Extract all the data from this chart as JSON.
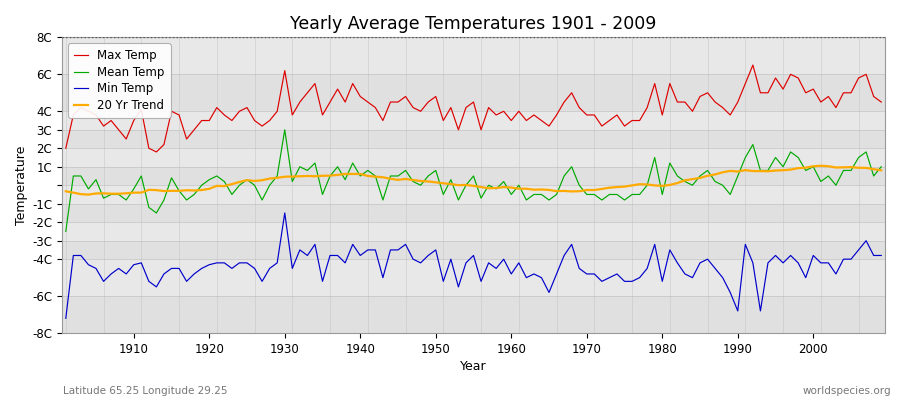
{
  "title": "Yearly Average Temperatures 1901 - 2009",
  "xlabel": "Year",
  "ylabel": "Temperature",
  "subtitle_lat": "Latitude 65.25 Longitude 29.25",
  "subtitle_right": "worldspecies.org",
  "ylim": [
    -8,
    8
  ],
  "start_year": 1901,
  "end_year": 2009,
  "colors": {
    "max": "#dd0000",
    "mean": "#00aa00",
    "min": "#0000cc",
    "trend": "#ffaa00",
    "bg_light": "#ebebeb",
    "bg_dark": "#dcdcdc",
    "grid_v": "#c8c8c8",
    "grid_h": "#c8c8c8"
  },
  "legend_labels": [
    "Max Temp",
    "Mean Temp",
    "Min Temp",
    "20 Yr Trend"
  ],
  "yticks": [
    -8,
    -6,
    -4,
    -3,
    -2,
    -1,
    0,
    1,
    2,
    3,
    4,
    6,
    8
  ],
  "ytick_labels": [
    "-8C",
    "-6C",
    "-4C",
    "-3C",
    "-2C",
    "-1C",
    "",
    "1C",
    "2C",
    "3C",
    "4C",
    "6C",
    "8C"
  ],
  "max_temps": [
    2.0,
    3.8,
    4.2,
    4.0,
    3.8,
    3.2,
    3.5,
    3.0,
    2.5,
    3.5,
    4.1,
    2.0,
    1.8,
    2.2,
    4.0,
    3.8,
    2.5,
    3.0,
    3.5,
    3.5,
    4.2,
    3.8,
    3.5,
    4.0,
    4.2,
    3.5,
    3.2,
    3.5,
    4.0,
    6.2,
    3.8,
    4.5,
    5.0,
    5.5,
    3.8,
    4.5,
    5.2,
    4.5,
    5.5,
    4.8,
    4.5,
    4.2,
    3.5,
    4.5,
    4.5,
    4.8,
    4.2,
    4.0,
    4.5,
    4.8,
    3.5,
    4.2,
    3.0,
    4.2,
    4.5,
    3.0,
    4.2,
    3.8,
    4.0,
    3.5,
    4.0,
    3.5,
    3.8,
    3.5,
    3.2,
    3.8,
    4.5,
    5.0,
    4.2,
    3.8,
    3.8,
    3.2,
    3.5,
    3.8,
    3.2,
    3.5,
    3.5,
    4.2,
    5.5,
    3.8,
    5.5,
    4.5,
    4.5,
    4.0,
    4.8,
    5.0,
    4.5,
    4.2,
    3.8,
    4.5,
    5.5,
    6.5,
    5.0,
    5.0,
    5.8,
    5.2,
    6.0,
    5.8,
    5.0,
    5.2,
    4.5,
    4.8,
    4.2,
    5.0,
    5.0,
    5.8,
    6.0,
    4.8,
    4.5
  ],
  "mean_temps": [
    -2.5,
    0.5,
    0.5,
    -0.2,
    0.3,
    -0.7,
    -0.5,
    -0.5,
    -0.8,
    -0.2,
    0.5,
    -1.2,
    -1.5,
    -0.8,
    0.4,
    -0.3,
    -0.8,
    -0.5,
    0.0,
    0.3,
    0.5,
    0.2,
    -0.5,
    0.0,
    0.3,
    0.0,
    -0.8,
    0.0,
    0.5,
    3.0,
    0.2,
    1.0,
    0.8,
    1.2,
    -0.5,
    0.5,
    1.0,
    0.3,
    1.2,
    0.5,
    0.8,
    0.5,
    -0.8,
    0.5,
    0.5,
    0.8,
    0.2,
    0.0,
    0.5,
    0.8,
    -0.5,
    0.3,
    -0.8,
    0.0,
    0.5,
    -0.7,
    0.0,
    -0.2,
    0.2,
    -0.5,
    0.0,
    -0.8,
    -0.5,
    -0.5,
    -0.8,
    -0.5,
    0.5,
    1.0,
    0.0,
    -0.5,
    -0.5,
    -0.8,
    -0.5,
    -0.5,
    -0.8,
    -0.5,
    -0.5,
    0.0,
    1.5,
    -0.5,
    1.2,
    0.5,
    0.2,
    0.0,
    0.5,
    0.8,
    0.2,
    0.0,
    -0.5,
    0.5,
    1.5,
    2.2,
    0.8,
    0.8,
    1.5,
    1.0,
    1.8,
    1.5,
    0.8,
    1.0,
    0.2,
    0.5,
    0.0,
    0.8,
    0.8,
    1.5,
    1.8,
    0.5,
    1.0
  ],
  "min_temps": [
    -7.2,
    -3.8,
    -3.8,
    -4.3,
    -4.5,
    -5.2,
    -4.8,
    -4.5,
    -4.8,
    -4.3,
    -4.2,
    -5.2,
    -5.5,
    -4.8,
    -4.5,
    -4.5,
    -5.2,
    -4.8,
    -4.5,
    -4.3,
    -4.2,
    -4.2,
    -4.5,
    -4.2,
    -4.2,
    -4.5,
    -5.2,
    -4.5,
    -4.2,
    -1.5,
    -4.5,
    -3.5,
    -3.8,
    -3.2,
    -5.2,
    -3.8,
    -3.8,
    -4.2,
    -3.2,
    -3.8,
    -3.5,
    -3.5,
    -5.0,
    -3.5,
    -3.5,
    -3.2,
    -4.0,
    -4.2,
    -3.8,
    -3.5,
    -5.2,
    -4.0,
    -5.5,
    -4.2,
    -3.8,
    -5.2,
    -4.2,
    -4.5,
    -4.0,
    -4.8,
    -4.2,
    -5.0,
    -4.8,
    -5.0,
    -5.8,
    -4.8,
    -3.8,
    -3.2,
    -4.5,
    -4.8,
    -4.8,
    -5.2,
    -5.0,
    -4.8,
    -5.2,
    -5.2,
    -5.0,
    -4.5,
    -3.2,
    -5.2,
    -3.5,
    -4.2,
    -4.8,
    -5.0,
    -4.2,
    -4.0,
    -4.5,
    -5.0,
    -5.8,
    -6.8,
    -3.2,
    -4.2,
    -6.8,
    -4.2,
    -3.8,
    -4.2,
    -3.8,
    -4.2,
    -5.0,
    -3.8,
    -4.2,
    -4.2,
    -4.8,
    -4.0,
    -4.0,
    -3.5,
    -3.0,
    -3.8,
    -3.8
  ]
}
